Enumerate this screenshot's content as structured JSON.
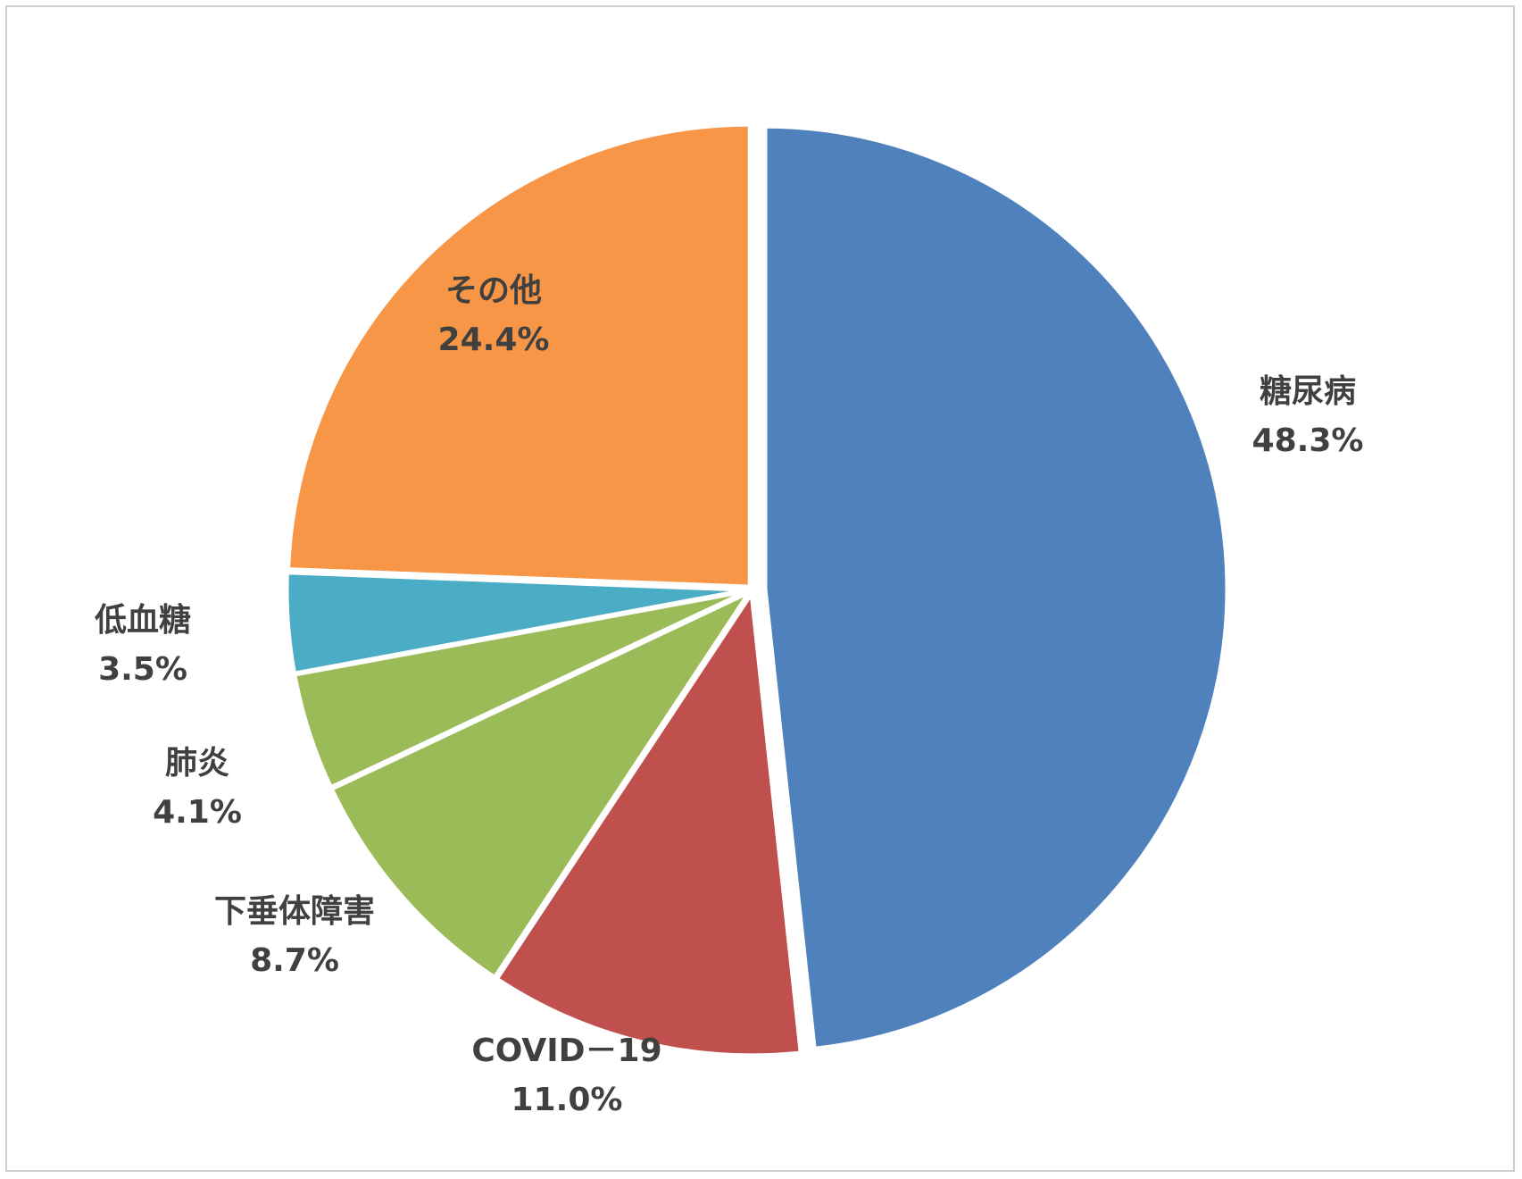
{
  "chart_data": {
    "type": "pie",
    "title": "",
    "start_angle_deg": 0,
    "direction": "clockwise",
    "exploded": true,
    "slices": [
      {
        "label": "糖尿病",
        "value": 48.3,
        "value_label": "48.3%",
        "color": "#4F81BD"
      },
      {
        "label": "COVID－19",
        "value": 11.0,
        "value_label": "11.0%",
        "color": "#C0504D"
      },
      {
        "label": "下垂体障害",
        "value": 8.7,
        "value_label": "8.7%",
        "color": "#9BBB59"
      },
      {
        "label": "肺炎",
        "value": 4.1,
        "value_label": "4.1%",
        "color": "#9BBB59"
      },
      {
        "label": "低血糖",
        "value": 3.5,
        "value_label": "3.5%",
        "color": "#4BACC6"
      },
      {
        "label": "その他",
        "value": 24.4,
        "value_label": "24.4%",
        "color": "#F79646"
      }
    ]
  }
}
